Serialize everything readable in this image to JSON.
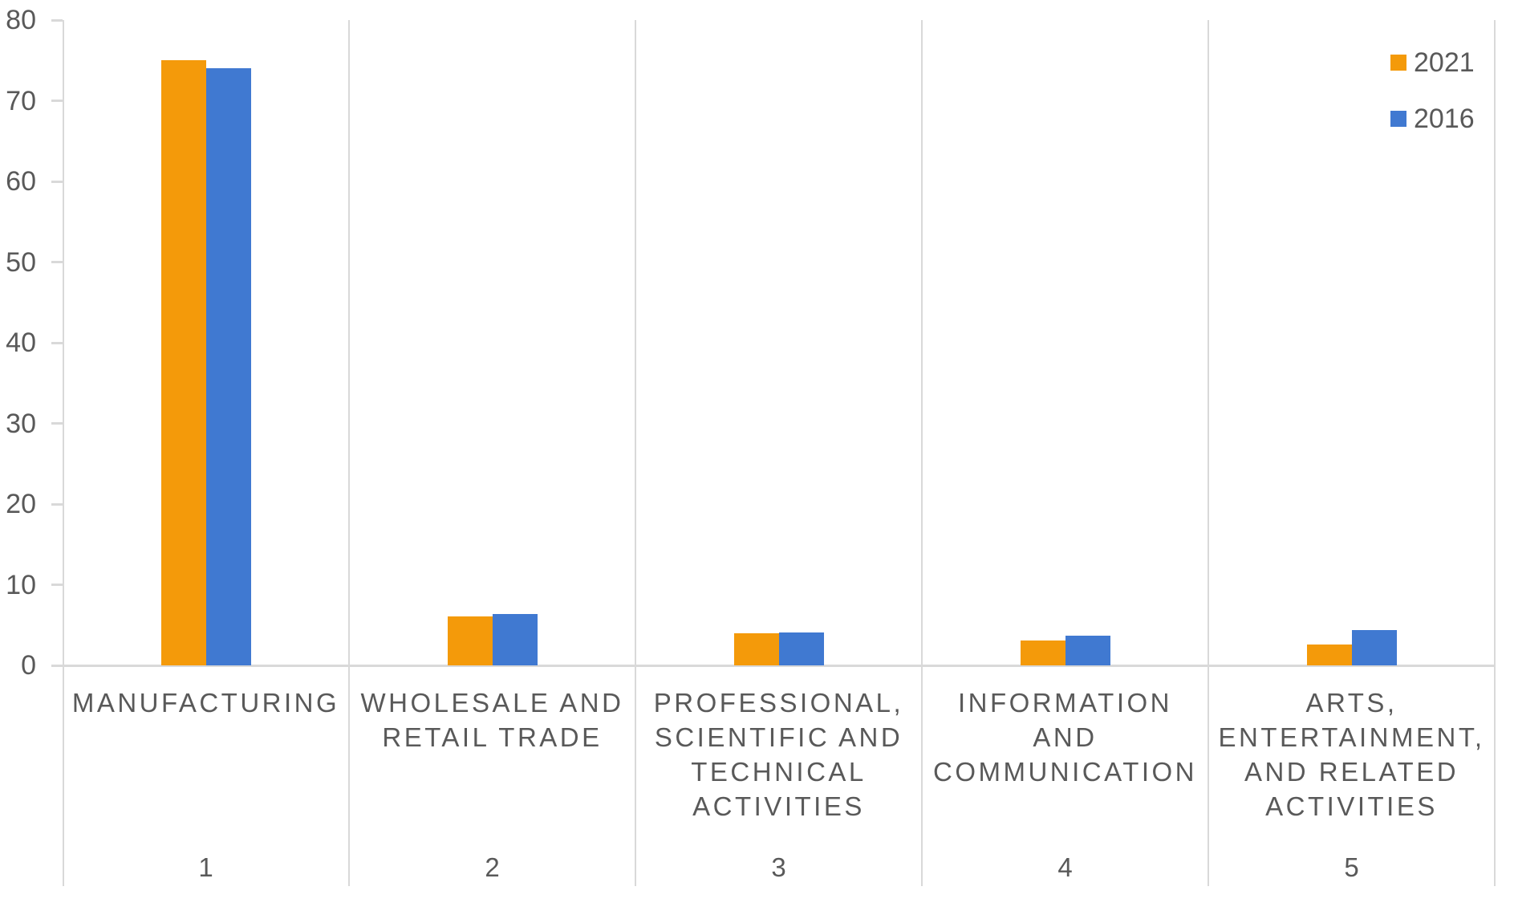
{
  "chart_data": {
    "type": "bar",
    "title": "",
    "categories": [
      {
        "number": "1",
        "label": "MANUFACTURING",
        "label_lines": [
          "MANUFACTURING"
        ]
      },
      {
        "number": "2",
        "label": "WHOLESALE AND RETAIL TRADE",
        "label_lines": [
          "WHOLESALE AND",
          "RETAIL TRADE"
        ]
      },
      {
        "number": "3",
        "label": "PROFESSIONAL, SCIENTIFIC AND TECHNICAL ACTIVITIES",
        "label_lines": [
          "PROFESSIONAL,",
          "SCIENTIFIC AND",
          "TECHNICAL",
          "ACTIVITIES"
        ]
      },
      {
        "number": "4",
        "label": "INFORMATION AND COMMUNICATION",
        "label_lines": [
          "INFORMATION",
          "AND",
          "COMMUNICATION"
        ]
      },
      {
        "number": "5",
        "label": "ARTS, ENTERTAINMENT, AND RELATED ACTIVITIES",
        "label_lines": [
          "ARTS,",
          "ENTERTAINMENT,",
          "AND RELATED",
          "ACTIVITIES"
        ]
      }
    ],
    "series": [
      {
        "name": "2021",
        "color": "#F49A0A",
        "values": [
          75,
          6.1,
          4.0,
          3.1,
          2.6
        ]
      },
      {
        "name": "2016",
        "color": "#4079D1",
        "values": [
          74,
          6.4,
          4.1,
          3.7,
          4.4
        ]
      }
    ],
    "ylim": [
      0,
      80
    ],
    "yticks": [
      0,
      10,
      20,
      30,
      40,
      50,
      60,
      70,
      80
    ],
    "legend_position": "top-right",
    "grid": "category-dividers-only",
    "axis_line_color": "#D9D9D9",
    "text_color": "#595959"
  }
}
